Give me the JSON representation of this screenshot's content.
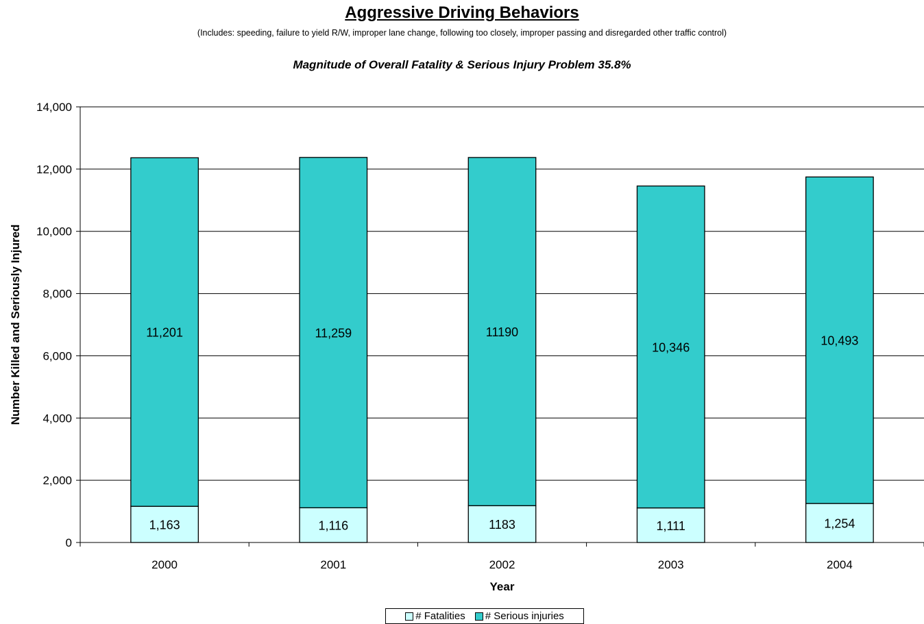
{
  "title": "Aggressive Driving Behaviors",
  "subtitle": "(Includes: speeding, failure to yield R/W, improper lane change, following too closely, improper passing and disregarded other traffic control)",
  "caption": "Magnitude of Overall Fatality & Serious Injury Problem 35.8%",
  "colors": {
    "fatalities": "#ccffff",
    "serious_injuries": "#33cccc"
  },
  "chart_data": {
    "type": "bar",
    "stacked": true,
    "categories": [
      "2000",
      "2001",
      "2002",
      "2003",
      "2004"
    ],
    "series": [
      {
        "name": "# Fatalities",
        "values": [
          1163,
          1116,
          1183,
          1111,
          1254
        ],
        "labels": [
          "1,163",
          "1,116",
          "1183",
          "1,111",
          "1,254"
        ]
      },
      {
        "name": "# Serious injuries",
        "values": [
          11201,
          11259,
          11190,
          10346,
          10493
        ],
        "labels": [
          "11,201",
          "11,259",
          "11190",
          "10,346",
          "10,493"
        ]
      }
    ],
    "xlabel": "Year",
    "ylabel": "Number Killed and Seriously Injured",
    "ylim": [
      0,
      14000
    ],
    "yticks": [
      "0",
      "2,000",
      "4,000",
      "6,000",
      "8,000",
      "10,000",
      "12,000",
      "14,000"
    ],
    "grid": true,
    "legend": "bottom"
  }
}
